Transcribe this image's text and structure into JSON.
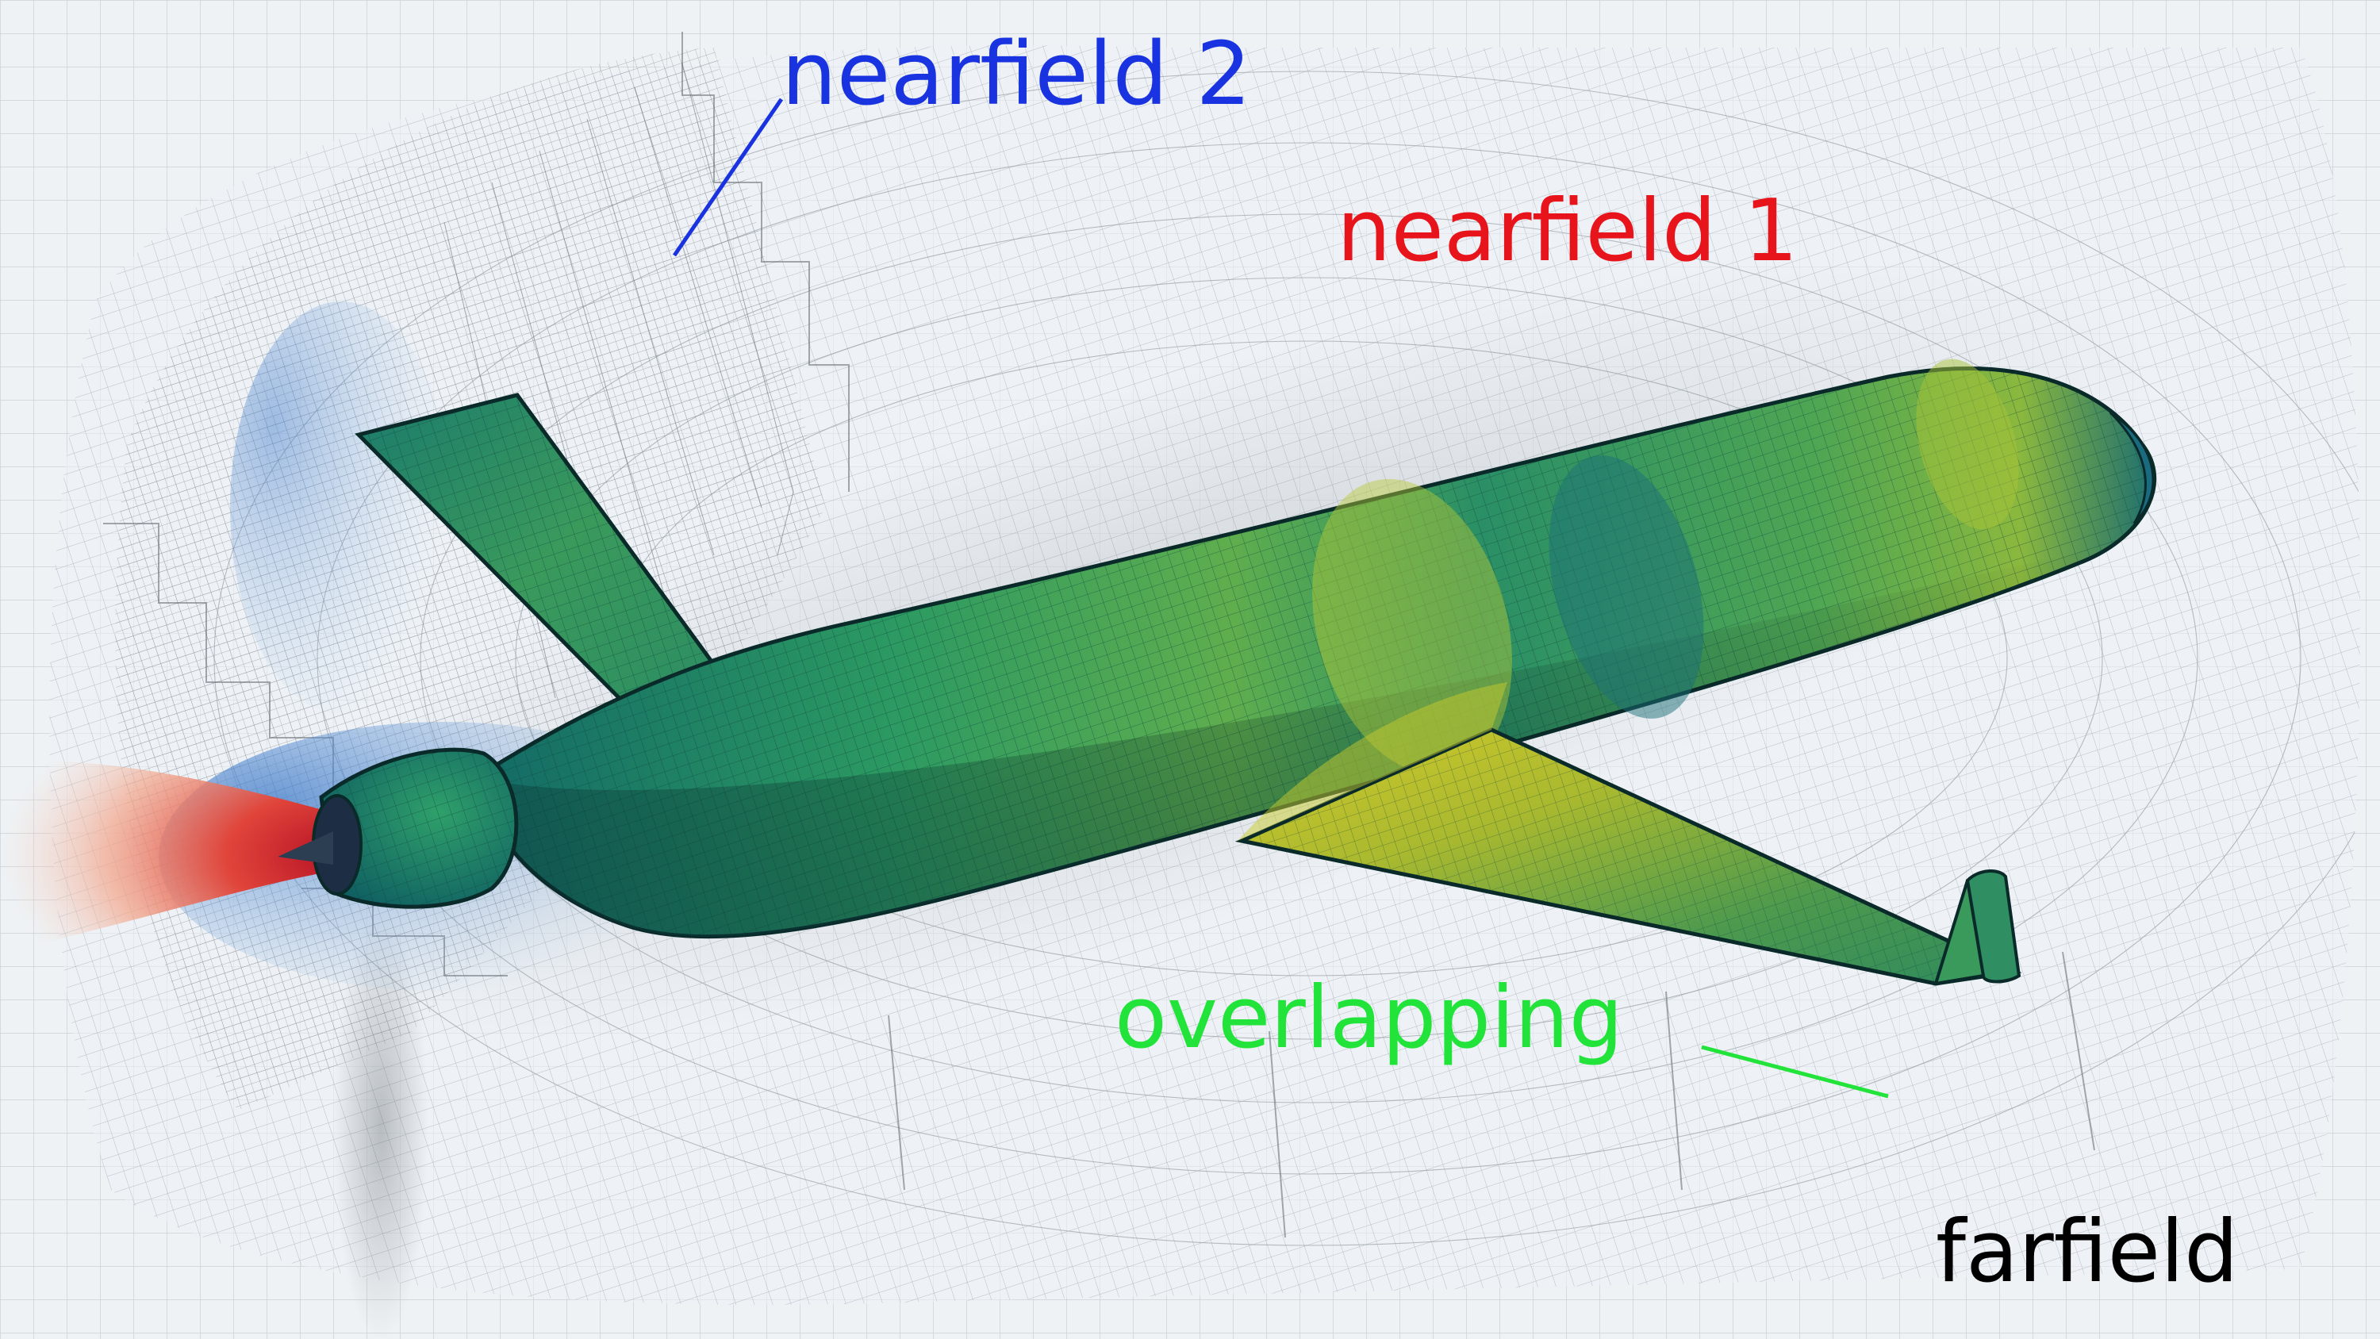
{
  "labels": {
    "nearfield_2": "nearfield 2",
    "nearfield_1": "nearfield 1",
    "overlapping": "overlapping",
    "farfield": "farfield"
  },
  "colors": {
    "background": "#eef2f5",
    "grid_line": "#bfc6cc",
    "nearfield_2": "#1a33e0",
    "nearfield_1": "#e8141c",
    "overlapping": "#22e33a",
    "farfield": "#000000",
    "surface_dark": "#136a66",
    "surface_mid": "#2c9a62",
    "surface_light": "#c7cc2e",
    "jet_hot": "#c8102a",
    "jet_cool": "#3b78c9"
  }
}
